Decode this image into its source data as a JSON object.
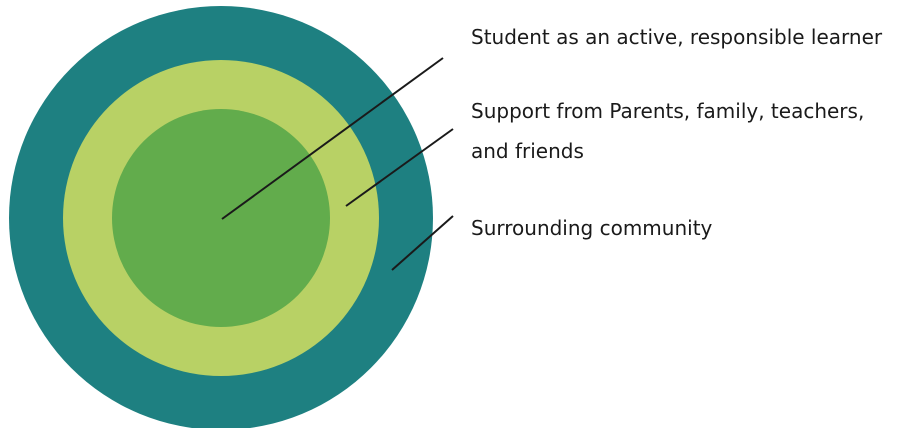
{
  "diagram": {
    "rings": [
      {
        "name": "surrounding-community",
        "color": "#1e8081"
      },
      {
        "name": "support-network",
        "color": "#b8d165"
      },
      {
        "name": "student",
        "color": "#62ac4c"
      }
    ],
    "labels": {
      "student": "Student as an active, responsible learner",
      "support": "Support from Parents, family, teachers, and friends",
      "community": "Surrounding community"
    },
    "leader_color": "#1a1a1a"
  }
}
